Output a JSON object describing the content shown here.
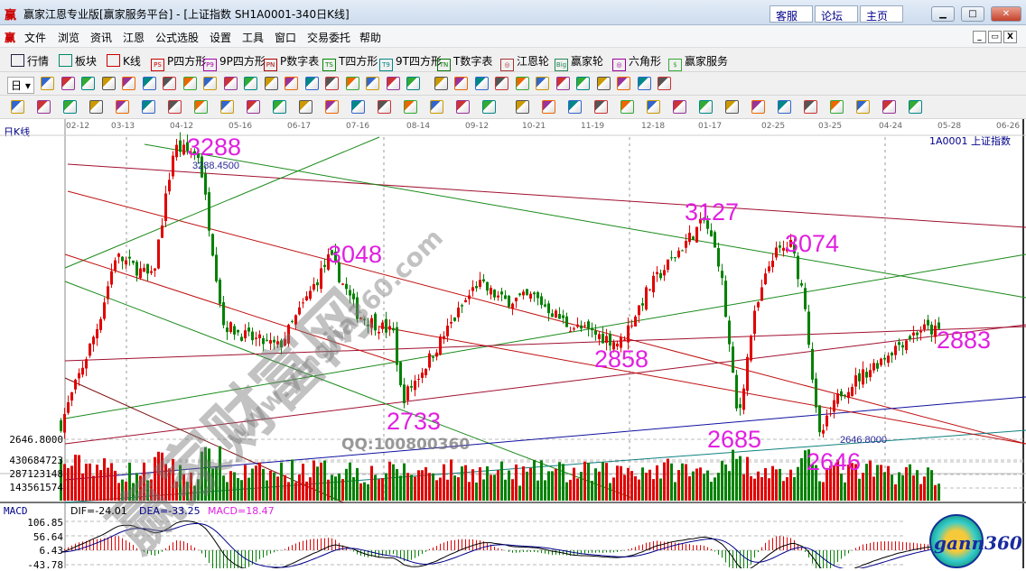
{
  "window": {
    "logo": "赢",
    "title": "赢家江恩专业版[赢家服务平台] - [上证指数  SH1A0001-340日K线]",
    "service_links": [
      "客服",
      "论坛",
      "主页"
    ],
    "controls": [
      "minimize",
      "maximize",
      "close"
    ]
  },
  "menu": {
    "logo": "赢",
    "items": [
      "文件",
      "浏览",
      "资讯",
      "江恩",
      "公式选股",
      "设置",
      "工具",
      "窗口",
      "交易委托",
      "帮助"
    ]
  },
  "toolbar1": [
    {
      "label": "行情",
      "icon": "grid-icon",
      "tag": "",
      "color": "#224"
    },
    {
      "label": "板块",
      "icon": "blocks-icon",
      "tag": "",
      "color": "#086"
    },
    {
      "label": "K线",
      "icon": "candles-icon",
      "tag": "",
      "color": "#c00"
    },
    {
      "label": "P四方形",
      "icon": "ps-icon",
      "tag": "PS",
      "color": "#c00"
    },
    {
      "label": "9P四方形",
      "icon": "p9-icon",
      "tag": "P9",
      "color": "#a0a"
    },
    {
      "label": "P数字表",
      "icon": "pn-icon",
      "tag": "PN",
      "color": "#a00"
    },
    {
      "label": "T四方形",
      "icon": "ts-icon",
      "tag": "TS",
      "color": "#080"
    },
    {
      "label": "9T四方形",
      "icon": "t9-icon",
      "tag": "T9",
      "color": "#088"
    },
    {
      "label": "T数字表",
      "icon": "tn-icon",
      "tag": "TN",
      "color": "#070"
    },
    {
      "label": "江恩轮",
      "icon": "target-icon",
      "tag": "◎",
      "color": "#a33"
    },
    {
      "label": "赢家轮",
      "icon": "big-icon",
      "tag": "Big",
      "color": "#285"
    },
    {
      "label": "六角形",
      "icon": "hexagon-icon",
      "tag": "◎",
      "color": "#909"
    },
    {
      "label": "赢家服务",
      "icon": "dollar-icon",
      "tag": "$",
      "color": "#3a3"
    }
  ],
  "toolbar2_period": "日",
  "toolbar2_icons": [
    "search-icon",
    "chart-icon",
    "candles-icon",
    "candles-icon",
    "box-icon",
    "compare-icon",
    "flag-icon",
    "first-icon",
    "prev-page-icon",
    "prev-icon",
    "next-icon",
    "diamond-icon",
    "diamond-icon",
    "diamond-icon",
    "diamond-icon",
    "diamond-icon",
    "diamond-icon",
    "diamond-icon",
    "diamond-icon",
    "diamond-icon",
    "hand-icon",
    "crosshair-icon",
    "line-icon",
    "draw-icon",
    "zoom-icon",
    "calendar-icon",
    "calculator-icon",
    "window-icon",
    "save-icon",
    "print-icon",
    "truck-icon"
  ],
  "toolbar3_icons": [
    "gann-tool-icon",
    "gann-tool-icon",
    "gann-tool-icon",
    "gann-tool-icon",
    "gann-tool-icon",
    "gann-tool-icon",
    "gann-tool-icon",
    "fan-icon",
    "circle-icon",
    "gann-tool-icon",
    "target-icon",
    "compass-icon",
    "gann-tool-icon",
    "gann-tool-icon",
    "gann-tool-icon",
    "gann-tool-icon",
    "gann-tool-icon",
    "grid-icon",
    "fan-icon",
    "fan-icon",
    "fan-icon",
    "fan-icon",
    "fan-icon",
    "fan-icon",
    "grid-icon",
    "table-icon",
    "ruler-icon",
    "gann-tool-icon",
    "gann-tool-icon",
    "gann-tool-icon",
    "gann-tool-icon",
    "gann-tool-icon",
    "gann-tool-icon",
    "gann-tool-icon",
    "gann-tool-icon"
  ],
  "chart": {
    "period_label": "日K线",
    "symbol_label": "1A0001 上证指数",
    "watermark": {
      "site": "赢家财富网",
      "url": "www.yingjia360.com",
      "qq": "QQ:100800360"
    },
    "logo": "gann360",
    "annotations": {
      "high_exact": "3288.4500",
      "low_exact": "2646.8000"
    },
    "labels": [
      "3288",
      "3048",
      "3127",
      "3074",
      "2858",
      "2733",
      "2685",
      "2883",
      "2646"
    ],
    "price_axis_label": "2646.8000",
    "volume_axis": [
      "430684723",
      "287123148",
      "143561574"
    ],
    "macd": {
      "title": "MACD",
      "dif": "DIF=-24.01",
      "dea": "DEA=-33.25",
      "macd": "MACD=18.47",
      "axis": [
        "106.85",
        "56.64",
        "6.43",
        "-43.78"
      ],
      "colors": {
        "dif": "#000000",
        "dea": "#00008b",
        "macd": "#e020e0"
      }
    },
    "colors": {
      "up": "#e00000",
      "down": "#008000",
      "label": "#e020e0"
    }
  },
  "chart_data": {
    "type": "candlestick",
    "x_ticks": [
      "02-12",
      "03-13",
      "04-12",
      "05-16",
      "06-17",
      "07-16",
      "08-14",
      "09-12",
      "10-21",
      "11-19",
      "12-18",
      "01-17",
      "02-25",
      "03-25",
      "04-24",
      "05-28",
      "06-26"
    ],
    "price_path": [
      [
        "2019-02-01",
        2680
      ],
      [
        "2019-02-25",
        2900
      ],
      [
        "2019-03-08",
        3050
      ],
      [
        "2019-03-28",
        3000
      ],
      [
        "2019-04-08",
        3288
      ],
      [
        "2019-04-22",
        3270
      ],
      [
        "2019-05-06",
        2900
      ],
      [
        "2019-05-20",
        2870
      ],
      [
        "2019-06-06",
        2850
      ],
      [
        "2019-06-20",
        2950
      ],
      [
        "2019-07-02",
        3048
      ],
      [
        "2019-07-16",
        2920
      ],
      [
        "2019-08-02",
        2880
      ],
      [
        "2019-08-06",
        2733
      ],
      [
        "2019-08-16",
        2800
      ],
      [
        "2019-08-30",
        2900
      ],
      [
        "2019-09-12",
        2990
      ],
      [
        "2019-09-30",
        2950
      ],
      [
        "2019-10-21",
        2960
      ],
      [
        "2019-11-06",
        2900
      ],
      [
        "2019-12-02",
        2858
      ],
      [
        "2019-12-16",
        2980
      ],
      [
        "2020-01-06",
        3090
      ],
      [
        "2020-01-14",
        3127
      ],
      [
        "2020-01-23",
        3030
      ],
      [
        "2020-02-03",
        2685
      ],
      [
        "2020-02-12",
        2900
      ],
      [
        "2020-02-24",
        3050
      ],
      [
        "2020-03-05",
        3074
      ],
      [
        "2020-03-12",
        2950
      ],
      [
        "2020-03-19",
        2646
      ],
      [
        "2020-03-30",
        2750
      ],
      [
        "2020-04-13",
        2800
      ],
      [
        "2020-04-30",
        2860
      ],
      [
        "2020-05-12",
        2890
      ],
      [
        "2020-05-22",
        2883
      ]
    ],
    "high": 3288.45,
    "low": 2646.8,
    "ylim": [
      2600,
      3320
    ]
  }
}
